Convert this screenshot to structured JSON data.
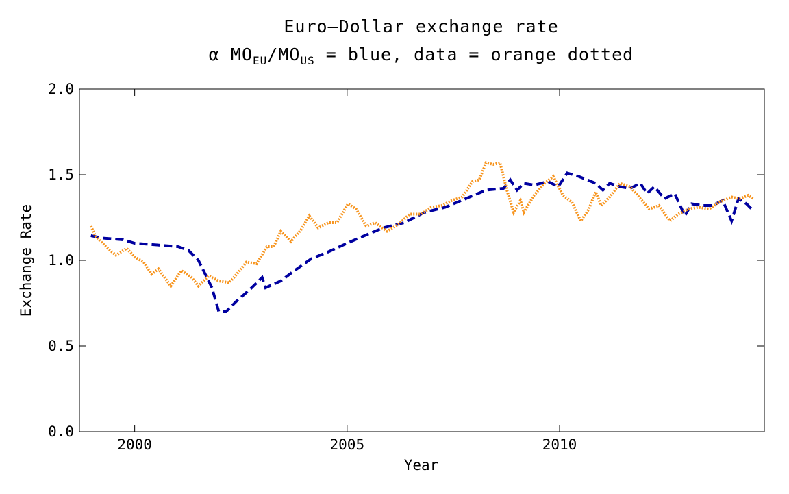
{
  "chart_data": {
    "type": "line",
    "title": "Euro–Dollar exchange rate",
    "subtitle": [
      "α MO",
      "EU",
      "/MO",
      "US",
      " = blue, data = orange dotted"
    ],
    "xlabel": "Year",
    "ylabel": "Exchange Rate",
    "xlim": [
      1998.7,
      2014.82
    ],
    "xticks": [
      2000,
      2005,
      2010
    ],
    "ylim": [
      0,
      2
    ],
    "yticks": [
      {
        "value": 0,
        "label": "0.0"
      },
      0.5,
      {
        "value": 1,
        "label": "1.0"
      },
      1.5,
      {
        "value": 2,
        "label": "2.0"
      }
    ],
    "series": [
      {
        "color": "#0000a0",
        "style": "dashed",
        "x": [
          1998.97,
          1999.24,
          1999.73,
          2000.0,
          2000.53,
          2001.02,
          2001.26,
          2001.5,
          2001.66,
          2001.82,
          2001.98,
          2002.15,
          2002.39,
          2002.71,
          2003.0,
          2003.08,
          2003.44,
          2003.76,
          2004.16,
          2004.56,
          2005.0,
          2005.37,
          2005.85,
          2006.34,
          2006.82,
          2007.31,
          2007.79,
          2008.27,
          2008.68,
          2008.84,
          2009.0,
          2009.16,
          2009.4,
          2009.73,
          2009.97,
          2010.18,
          2010.45,
          2010.85,
          2011.02,
          2011.18,
          2011.42,
          2011.66,
          2011.9,
          2012.06,
          2012.23,
          2012.47,
          2012.71,
          2012.95,
          2013.11,
          2013.35,
          2013.6,
          2013.84,
          2014.05,
          2014.21,
          2014.4,
          2014.56
        ],
        "values": [
          1.144,
          1.13,
          1.12,
          1.1,
          1.09,
          1.08,
          1.06,
          1.0,
          0.92,
          0.84,
          0.7,
          0.7,
          0.76,
          0.83,
          0.9,
          0.84,
          0.88,
          0.94,
          1.01,
          1.05,
          1.1,
          1.14,
          1.19,
          1.22,
          1.28,
          1.31,
          1.36,
          1.41,
          1.42,
          1.47,
          1.41,
          1.45,
          1.44,
          1.46,
          1.43,
          1.51,
          1.49,
          1.45,
          1.41,
          1.45,
          1.43,
          1.42,
          1.45,
          1.39,
          1.43,
          1.36,
          1.39,
          1.26,
          1.33,
          1.32,
          1.32,
          1.35,
          1.23,
          1.36,
          1.33,
          1.29
        ]
      },
      {
        "color": "#f7941d",
        "style": "dotted",
        "x": [
          1998.97,
          1999.08,
          1999.32,
          1999.56,
          1999.81,
          2000.0,
          2000.21,
          2000.4,
          2000.56,
          2000.85,
          2001.1,
          2001.34,
          2001.5,
          2001.74,
          2001.98,
          2002.23,
          2002.47,
          2002.63,
          2002.87,
          2003.11,
          2003.27,
          2003.44,
          2003.68,
          2003.92,
          2004.11,
          2004.32,
          2004.56,
          2004.76,
          2005.02,
          2005.21,
          2005.45,
          2005.66,
          2005.94,
          2006.21,
          2006.47,
          2006.74,
          2006.98,
          2007.23,
          2007.47,
          2007.71,
          2007.95,
          2008.11,
          2008.27,
          2008.44,
          2008.6,
          2008.76,
          2008.92,
          2009.08,
          2009.16,
          2009.4,
          2009.65,
          2009.85,
          2010.08,
          2010.29,
          2010.5,
          2010.69,
          2010.85,
          2010.98,
          2011.18,
          2011.42,
          2011.66,
          2011.9,
          2012.11,
          2012.34,
          2012.6,
          2012.79,
          2013.03,
          2013.27,
          2013.52,
          2013.76,
          2014.05,
          2014.24,
          2014.44,
          2014.56
        ],
        "values": [
          1.2,
          1.14,
          1.08,
          1.03,
          1.07,
          1.02,
          0.99,
          0.92,
          0.95,
          0.85,
          0.94,
          0.9,
          0.85,
          0.91,
          0.88,
          0.87,
          0.94,
          0.99,
          0.98,
          1.08,
          1.08,
          1.17,
          1.11,
          1.18,
          1.26,
          1.19,
          1.22,
          1.22,
          1.33,
          1.3,
          1.2,
          1.22,
          1.17,
          1.21,
          1.27,
          1.27,
          1.31,
          1.32,
          1.35,
          1.37,
          1.46,
          1.47,
          1.57,
          1.56,
          1.57,
          1.41,
          1.28,
          1.35,
          1.28,
          1.38,
          1.45,
          1.49,
          1.38,
          1.34,
          1.23,
          1.3,
          1.4,
          1.32,
          1.37,
          1.45,
          1.43,
          1.36,
          1.3,
          1.32,
          1.23,
          1.27,
          1.3,
          1.31,
          1.3,
          1.34,
          1.37,
          1.36,
          1.38,
          1.36
        ]
      }
    ]
  }
}
